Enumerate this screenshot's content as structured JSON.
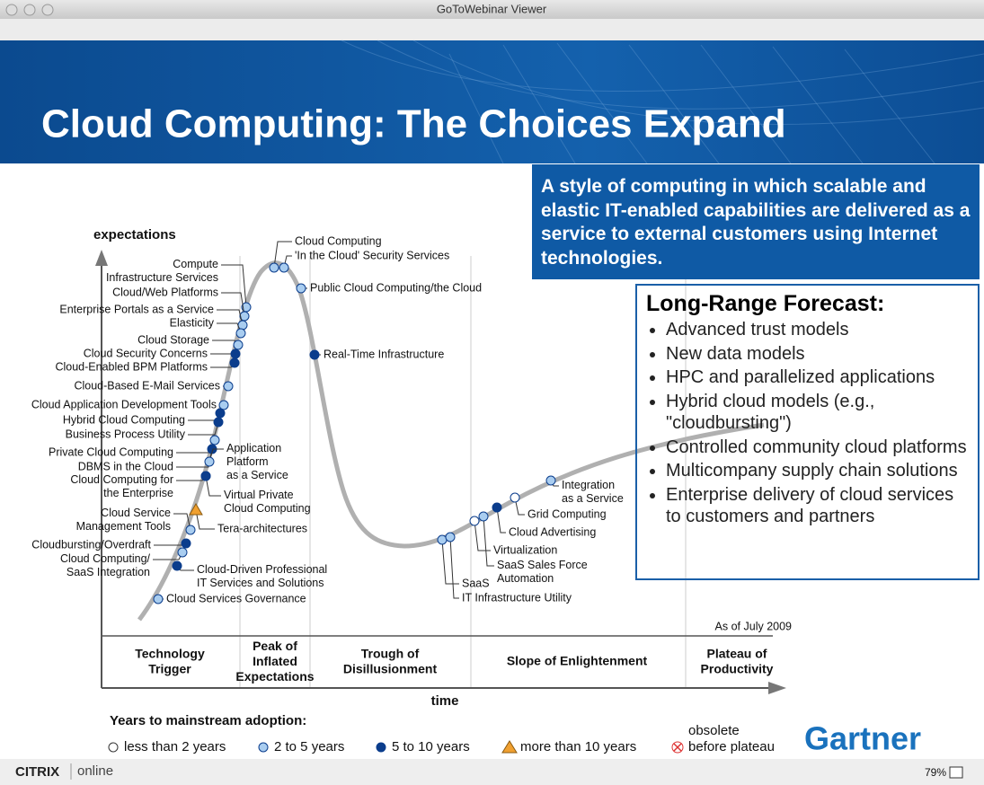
{
  "window": {
    "title": "GoToWebinar Viewer",
    "brand": "CITRIX",
    "brand_suffix": "online",
    "zoom": "79%"
  },
  "slide": {
    "title": "Cloud Computing: The Choices Expand",
    "definition": "A style of computing in which scalable and elastic IT-enabled capabilities are delivered as a service to external customers using Internet technologies.",
    "forecast": {
      "title": "Long-Range Forecast:",
      "items": [
        "Advanced trust models",
        "New data models",
        "HPC and parallelized applications",
        "Hybrid cloud models (e.g., \"cloudbursting\")",
        "Controlled community cloud platforms",
        "Multicompany supply chain solutions",
        "Enterprise delivery of cloud services to customers and partners"
      ]
    }
  },
  "hype_cycle": {
    "y_label": "expectations",
    "x_label": "time",
    "as_of": "As of July 2009",
    "phases": [
      "Technology\nTrigger",
      "Peak of\nInflated\nExpectations",
      "Trough of\nDisillusionment",
      "Slope of Enlightenment",
      "Plateau of\nProductivity"
    ],
    "points": [
      "Cloud Computing",
      "'In the Cloud' Security Services",
      "Public Cloud Computing/the Cloud",
      "Real-Time Infrastructure",
      "Compute\nInfrastructure Services",
      "Cloud/Web Platforms",
      "Enterprise Portals as a Service",
      "Elasticity",
      "Cloud Storage",
      "Cloud Security Concerns",
      "Cloud-Enabled BPM Platforms",
      "Cloud-Based E-Mail Services",
      "Cloud Application Development Tools",
      "Hybrid Cloud Computing",
      "Business Process Utility",
      "Private Cloud Computing",
      "DBMS in the Cloud",
      "Cloud Computing for\nthe Enterprise",
      "Application\nPlatform\nas a Service",
      "Virtual Private\nCloud Computing",
      "Cloud Service\nManagement Tools",
      "Tera-architectures",
      "Cloudbursting/Overdraft",
      "Cloud Computing/\nSaaS Integration",
      "Cloud-Driven Professional\nIT Services and Solutions",
      "Cloud Services Governance",
      "SaaS",
      "IT Infrastructure Utility",
      "Virtualization",
      "SaaS Sales Force\nAutomation",
      "Cloud Advertising",
      "Grid Computing",
      "Integration\nas a Service"
    ],
    "legend": {
      "title": "Years to mainstream adoption:",
      "items": [
        "less than 2 years",
        "2 to 5 years",
        "5 to 10 years",
        "more than 10 years",
        "obsolete\nbefore plateau"
      ]
    }
  },
  "logo": "Gartner"
}
